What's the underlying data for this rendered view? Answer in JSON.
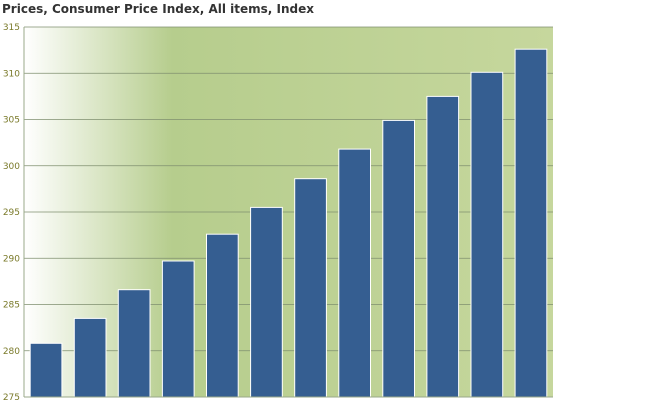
{
  "chart_data": {
    "type": "bar",
    "title": "Prices, Consumer Price Index, All items, Index",
    "xlabel": "",
    "ylabel": "",
    "categories": [
      "",
      "",
      "",
      "",
      "",
      "",
      "",
      "",
      "",
      "",
      "",
      ""
    ],
    "values": [
      280.8,
      283.5,
      286.6,
      289.7,
      292.6,
      295.5,
      298.6,
      301.8,
      304.9,
      307.5,
      310.1,
      312.6
    ],
    "ylim": [
      275,
      315
    ],
    "yticks": [
      275,
      280,
      285,
      290,
      295,
      300,
      305,
      310,
      315
    ],
    "grid": true,
    "legend": "none",
    "colors": {
      "bar": "#355e91",
      "bar_edge": "#ffffff",
      "plot_bg_light": "#ffffff",
      "plot_bg_mid": "#b6cd8d",
      "plot_bg": "#c6d79d",
      "grid": "#7f8f6f",
      "tick_text": "#7a7a2a"
    }
  }
}
